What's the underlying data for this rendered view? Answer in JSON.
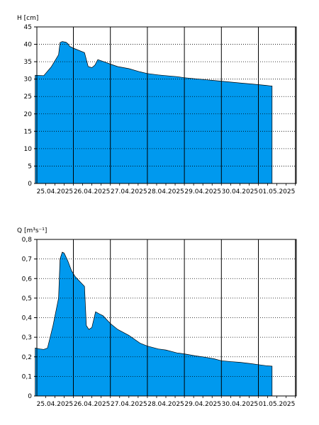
{
  "chart_data": [
    {
      "type": "area",
      "ylabel": "H [cm]",
      "ylim": [
        0,
        45
      ],
      "yticks": [
        "0",
        "5",
        "10",
        "15",
        "20",
        "25",
        "30",
        "35",
        "40",
        "45"
      ],
      "xlim": [
        0,
        7
      ],
      "xticks": [
        {
          "x": 0,
          "label": "25.04.2025"
        },
        {
          "x": 1,
          "label": "26.04.2025"
        },
        {
          "x": 2,
          "label": "27.04.2025"
        },
        {
          "x": 3,
          "label": "28.04.2025"
        },
        {
          "x": 4,
          "label": "29.04.2025"
        },
        {
          "x": 5,
          "label": "30.04.2025"
        },
        {
          "x": 6,
          "label": "01.05.2025"
        }
      ],
      "grid": "dotted horizontal, solid vertical at day boundaries",
      "fill_color": "#0099ee",
      "x": [
        -0.03,
        0.2,
        0.4,
        0.6,
        0.64,
        0.7,
        0.8,
        0.85,
        0.9,
        1.0,
        1.3,
        1.4,
        1.5,
        1.58,
        1.66,
        1.74,
        1.85,
        2.0,
        2.2,
        2.5,
        2.8,
        3.0,
        3.3,
        3.5,
        3.8,
        4.0,
        4.3,
        4.5,
        4.8,
        5.0,
        5.3,
        5.5,
        5.8,
        6.0,
        6.2,
        6.37
      ],
      "values": [
        31.1,
        31.0,
        33.5,
        37.0,
        40.5,
        40.8,
        40.6,
        40.2,
        39.4,
        38.9,
        37.6,
        33.6,
        33.3,
        34.0,
        35.6,
        35.3,
        34.9,
        34.3,
        33.6,
        33.0,
        32.1,
        31.6,
        31.2,
        31.0,
        30.7,
        30.4,
        30.1,
        29.9,
        29.6,
        29.4,
        29.1,
        28.9,
        28.6,
        28.4,
        28.2,
        28.0
      ]
    },
    {
      "type": "area",
      "ylabel": "Q [m³s⁻¹]",
      "ylim": [
        0,
        0.8
      ],
      "yticks": [
        "0",
        "0,1",
        "0,2",
        "0,3",
        "0,4",
        "0,5",
        "0,6",
        "0,7",
        "0,8"
      ],
      "xlim": [
        0,
        7
      ],
      "xticks": [
        {
          "x": 0,
          "label": "25.04.2025"
        },
        {
          "x": 1,
          "label": "26.04.2025"
        },
        {
          "x": 2,
          "label": "27.04.2025"
        },
        {
          "x": 3,
          "label": "28.04.2025"
        },
        {
          "x": 4,
          "label": "29.04.2025"
        },
        {
          "x": 5,
          "label": "30.04.2025"
        },
        {
          "x": 6,
          "label": "01.05.2025"
        }
      ],
      "grid": "dotted horizontal, solid vertical at day boundaries",
      "fill_color": "#0099ee",
      "x": [
        -0.03,
        0.1,
        0.2,
        0.3,
        0.45,
        0.6,
        0.64,
        0.7,
        0.75,
        0.85,
        0.95,
        1.05,
        1.1,
        1.2,
        1.3,
        1.35,
        1.42,
        1.5,
        1.6,
        1.7,
        1.8,
        2.0,
        2.2,
        2.5,
        2.8,
        3.0,
        3.3,
        3.5,
        3.8,
        4.0,
        4.3,
        4.5,
        4.8,
        5.0,
        5.3,
        5.5,
        5.8,
        6.0,
        6.2,
        6.37
      ],
      "values": [
        0.245,
        0.24,
        0.238,
        0.245,
        0.36,
        0.5,
        0.7,
        0.735,
        0.73,
        0.69,
        0.64,
        0.61,
        0.6,
        0.58,
        0.56,
        0.36,
        0.34,
        0.35,
        0.43,
        0.42,
        0.41,
        0.37,
        0.34,
        0.31,
        0.27,
        0.255,
        0.24,
        0.235,
        0.22,
        0.215,
        0.205,
        0.2,
        0.19,
        0.18,
        0.175,
        0.172,
        0.165,
        0.16,
        0.155,
        0.152
      ]
    }
  ]
}
